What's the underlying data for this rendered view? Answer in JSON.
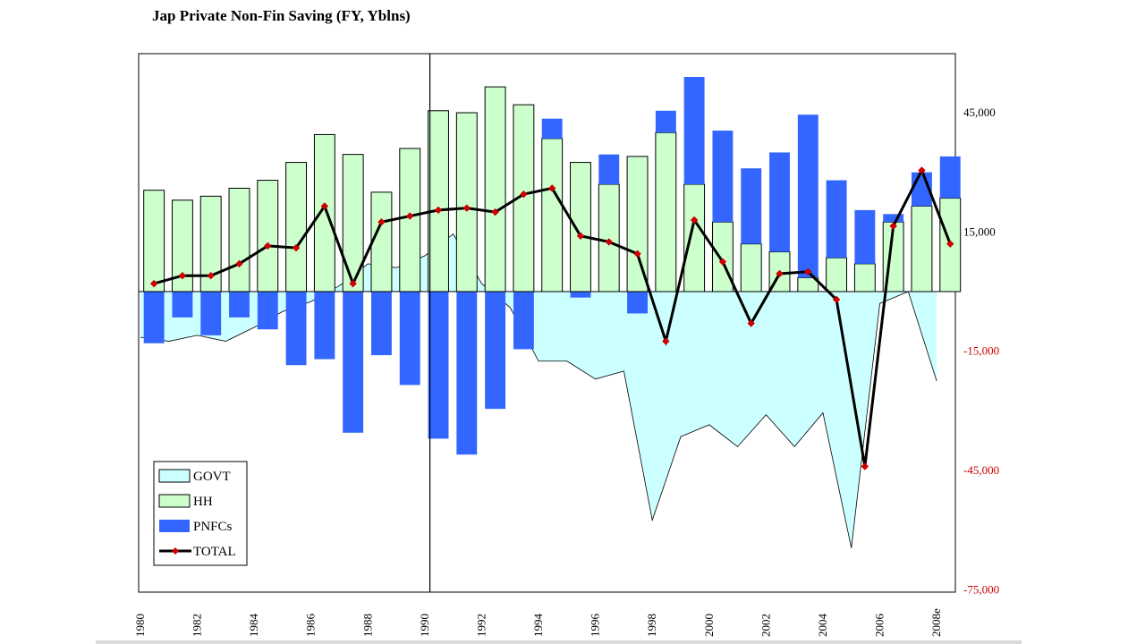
{
  "chart_data": {
    "type": "bar",
    "title": "Jap Private Non-Fin Saving (FY, Yblns)",
    "categories": [
      "1980",
      "1981",
      "1982",
      "1983",
      "1984",
      "1985",
      "1986",
      "1987",
      "1988",
      "1989",
      "1990",
      "1991",
      "1992",
      "1993",
      "1994",
      "1995",
      "1996",
      "1997",
      "1998",
      "1999",
      "2000",
      "2001",
      "2002",
      "2003",
      "2004",
      "2005",
      "2006",
      "2007",
      "2008e"
    ],
    "x_tick_labels": [
      "1980",
      "1982",
      "1984",
      "1986",
      "1988",
      "1990",
      "1992",
      "1994",
      "1996",
      "1998",
      "2000",
      "2002",
      "2004",
      "2006",
      "2008e"
    ],
    "y_tick_labels": [
      "45,000",
      "15,000",
      "-15,000",
      "-45,000",
      "-75,000"
    ],
    "ylim": [
      -75000,
      60000
    ],
    "vertical_marker": "1990",
    "series": [
      {
        "name": "GOVT",
        "type": "area",
        "color": "#ccffff",
        "values": [
          -11500,
          -12500,
          -11000,
          -12500,
          -9000,
          -5000,
          -2500,
          1500,
          7000,
          6000,
          9000,
          14500,
          2000,
          -4000,
          -17500,
          -17500,
          -22000,
          -20000,
          -57500,
          -36500,
          -33500,
          -39000,
          -31000,
          -39000,
          -30500,
          -64500,
          -3000,
          0,
          -22500
        ]
      },
      {
        "name": "HH",
        "type": "bar",
        "color": "#ccffcc",
        "values": [
          25500,
          23000,
          24000,
          26000,
          28000,
          32500,
          39500,
          34500,
          25000,
          36000,
          45500,
          45000,
          51500,
          47000,
          38500,
          32500,
          27000,
          34000,
          40000,
          27000,
          17500,
          12000,
          10000,
          3500,
          8500,
          7000,
          17500,
          21500,
          23500
        ]
      },
      {
        "name": "PNFCs",
        "type": "bar",
        "color": "#3366ff",
        "values": [
          -13000,
          -6500,
          -11000,
          -6500,
          -9500,
          -18500,
          -17000,
          -35500,
          -16000,
          -23500,
          -37000,
          -41000,
          -29500,
          -14500,
          5000,
          -1500,
          7500,
          -5500,
          5500,
          27000,
          23000,
          19000,
          25000,
          41000,
          19500,
          13500,
          2000,
          8500,
          10500
        ]
      },
      {
        "name": "TOTAL",
        "type": "line",
        "color": "#000000",
        "marker_color": "#cc0000",
        "values": [
          2000,
          4000,
          4000,
          7000,
          11500,
          11000,
          21500,
          2000,
          17500,
          19000,
          20500,
          21000,
          20000,
          24500,
          26000,
          14000,
          12500,
          9500,
          -12500,
          18000,
          7500,
          -8000,
          4500,
          5000,
          -2000,
          -44000,
          16500,
          30500,
          12000
        ]
      }
    ],
    "legend": {
      "position": "bottom-left",
      "entries": [
        "GOVT",
        "HH",
        "PNFCs",
        "TOTAL"
      ]
    },
    "colors": {
      "axis_tick_positive": "#000000",
      "axis_tick_negative": "#cc0000"
    }
  }
}
